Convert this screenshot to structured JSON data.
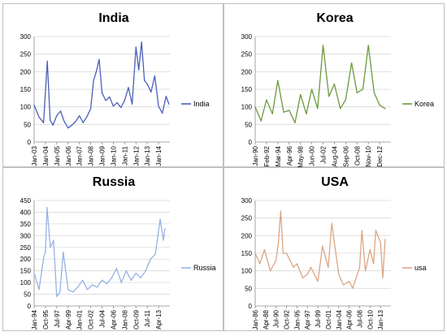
{
  "chart_data": [
    {
      "type": "line",
      "title": "India",
      "xlabel": "",
      "ylabel": "",
      "ylim": [
        0,
        300
      ],
      "y_ticks": [
        "0",
        "50",
        "100",
        "150",
        "200",
        "250",
        "300"
      ],
      "x_ticks": [
        "Jan-03",
        "Jan-04",
        "Jan-05",
        "Jan-06",
        "Jan-07",
        "Jan-08",
        "Jan-09",
        "Jan-10",
        "Jan-11",
        "Jan-12",
        "Jan-13",
        "Jan-14"
      ],
      "grid": true,
      "legend_position": "right",
      "color": "#4a5fb8",
      "series": [
        {
          "name": "India",
          "points": [
            [
              "Jan-03",
              105
            ],
            [
              "Jun-03",
              72
            ],
            [
              "Nov-03",
              55
            ],
            [
              "Mar-04",
              230
            ],
            [
              "Jun-04",
              62
            ],
            [
              "Sep-04",
              48
            ],
            [
              "Jan-05",
              75
            ],
            [
              "May-05",
              88
            ],
            [
              "Sep-05",
              58
            ],
            [
              "Jan-06",
              40
            ],
            [
              "May-06",
              48
            ],
            [
              "Sep-06",
              58
            ],
            [
              "Jan-07",
              75
            ],
            [
              "May-07",
              55
            ],
            [
              "Sep-07",
              72
            ],
            [
              "Jan-08",
              95
            ],
            [
              "Apr-08",
              175
            ],
            [
              "Jul-08",
              200
            ],
            [
              "Oct-08",
              235
            ],
            [
              "Jan-09",
              140
            ],
            [
              "May-09",
              118
            ],
            [
              "Sep-09",
              128
            ],
            [
              "Jan-10",
              102
            ],
            [
              "May-10",
              112
            ],
            [
              "Sep-10",
              98
            ],
            [
              "Jan-11",
              118
            ],
            [
              "May-11",
              155
            ],
            [
              "Sep-11",
              108
            ],
            [
              "Jan-12",
              270
            ],
            [
              "Apr-12",
              205
            ],
            [
              "Jul-12",
              284
            ],
            [
              "Oct-12",
              175
            ],
            [
              "Jan-13",
              165
            ],
            [
              "May-13",
              142
            ],
            [
              "Sep-13",
              188
            ],
            [
              "Jan-14",
              102
            ],
            [
              "May-14",
              82
            ],
            [
              "Sep-14",
              130
            ],
            [
              "Dec-14",
              108
            ]
          ]
        }
      ]
    },
    {
      "type": "line",
      "title": "Korea",
      "xlabel": "",
      "ylabel": "",
      "ylim": [
        0,
        300
      ],
      "y_ticks": [
        "0",
        "50",
        "100",
        "150",
        "200",
        "250",
        "300"
      ],
      "x_ticks": [
        "Jan-90",
        "Feb-92",
        "Mar-94",
        "Apr-96",
        "May-98",
        "Jun-00",
        "Jul-02",
        "Aug-04",
        "Sep-06",
        "Oct-08",
        "Nov-10",
        "Dec-12"
      ],
      "grid": true,
      "legend_position": "right",
      "color": "#6a9a3c",
      "series": [
        {
          "name": "Korea",
          "points": [
            [
              "Jan-90",
              100
            ],
            [
              "Feb-91",
              60
            ],
            [
              "Feb-92",
              120
            ],
            [
              "Mar-93",
              80
            ],
            [
              "Mar-94",
              175
            ],
            [
              "Apr-95",
              85
            ],
            [
              "Apr-96",
              90
            ],
            [
              "May-97",
              55
            ],
            [
              "May-98",
              135
            ],
            [
              "Jun-99",
              80
            ],
            [
              "Jun-00",
              150
            ],
            [
              "Jul-01",
              95
            ],
            [
              "Jul-02",
              275
            ],
            [
              "Aug-03",
              130
            ],
            [
              "Aug-04",
              165
            ],
            [
              "Sep-05",
              95
            ],
            [
              "Sep-06",
              120
            ],
            [
              "Oct-07",
              225
            ],
            [
              "Oct-08",
              140
            ],
            [
              "Nov-09",
              150
            ],
            [
              "Nov-10",
              275
            ],
            [
              "Dec-11",
              140
            ],
            [
              "Dec-12",
              105
            ],
            [
              "Dec-13",
              95
            ]
          ]
        }
      ]
    },
    {
      "type": "line",
      "title": "Russia",
      "xlabel": "",
      "ylabel": "",
      "ylim": [
        0,
        450
      ],
      "y_ticks": [
        "0",
        "50",
        "100",
        "150",
        "200",
        "250",
        "300",
        "350",
        "400",
        "450"
      ],
      "x_ticks": [
        "Jan-94",
        "Oct-95",
        "Jul-97",
        "Apr-99",
        "Jan-01",
        "Oct-02",
        "Jul-04",
        "Apr-06",
        "Jan-08",
        "Oct-09",
        "Jul-11",
        "Apr-13"
      ],
      "grid": true,
      "legend_position": "right",
      "color": "#95b3e3",
      "series": [
        {
          "name": "Russia",
          "points": [
            [
              "Jan-94",
              140
            ],
            [
              "Oct-94",
              70
            ],
            [
              "Jul-95",
              210
            ],
            [
              "Oct-95",
              230
            ],
            [
              "Jan-96",
              420
            ],
            [
              "Jul-96",
              250
            ],
            [
              "Jan-97",
              280
            ],
            [
              "Jul-97",
              40
            ],
            [
              "Jan-98",
              60
            ],
            [
              "Jul-98",
              230
            ],
            [
              "Apr-99",
              70
            ],
            [
              "Jan-00",
              60
            ],
            [
              "Oct-00",
              80
            ],
            [
              "Jul-01",
              110
            ],
            [
              "Apr-02",
              70
            ],
            [
              "Jan-03",
              90
            ],
            [
              "Oct-03",
              80
            ],
            [
              "Jul-04",
              110
            ],
            [
              "Apr-05",
              95
            ],
            [
              "Jan-06",
              120
            ],
            [
              "Oct-06",
              160
            ],
            [
              "Jul-07",
              100
            ],
            [
              "Apr-08",
              150
            ],
            [
              "Jan-09",
              110
            ],
            [
              "Oct-09",
              140
            ],
            [
              "Jul-10",
              120
            ],
            [
              "Apr-11",
              150
            ],
            [
              "Jan-12",
              200
            ],
            [
              "Oct-12",
              220
            ],
            [
              "Jul-13",
              370
            ],
            [
              "Jan-14",
              280
            ],
            [
              "Apr-14",
              330
            ]
          ]
        }
      ]
    },
    {
      "type": "line",
      "title": "USA",
      "xlabel": "",
      "ylabel": "",
      "ylim": [
        0,
        300
      ],
      "y_ticks": [
        "0",
        "50",
        "100",
        "150",
        "200",
        "250",
        "300"
      ],
      "x_ticks": [
        "Jan-86",
        "Apr-88",
        "Jul-90",
        "Oct-92",
        "Jan-95",
        "Apr-97",
        "Jul-99",
        "Oct-01",
        "Jan-04",
        "Apr-06",
        "Jul-08",
        "Oct-10",
        "Jan-13"
      ],
      "grid": true,
      "legend_position": "right",
      "color": "#dba583",
      "series": [
        {
          "name": "usa",
          "points": [
            [
              "Jan-86",
              150
            ],
            [
              "Jan-87",
              120
            ],
            [
              "Jan-88",
              160
            ],
            [
              "Apr-89",
              100
            ],
            [
              "Jul-90",
              130
            ],
            [
              "Jan-91",
              180
            ],
            [
              "Jul-91",
              270
            ],
            [
              "Jan-92",
              150
            ],
            [
              "Oct-92",
              150
            ],
            [
              "Apr-94",
              110
            ],
            [
              "Jan-95",
              120
            ],
            [
              "Apr-96",
              80
            ],
            [
              "Apr-97",
              90
            ],
            [
              "Jan-98",
              110
            ],
            [
              "Jul-99",
              70
            ],
            [
              "Jul-00",
              170
            ],
            [
              "Oct-01",
              110
            ],
            [
              "Jul-02",
              235
            ],
            [
              "Jan-04",
              90
            ],
            [
              "Jan-05",
              60
            ],
            [
              "Apr-06",
              70
            ],
            [
              "Jan-07",
              50
            ],
            [
              "Jul-08",
              110
            ],
            [
              "Jan-09",
              215
            ],
            [
              "Oct-09",
              100
            ],
            [
              "Oct-10",
              160
            ],
            [
              "Jul-11",
              120
            ],
            [
              "Jan-12",
              215
            ],
            [
              "Jan-13",
              180
            ],
            [
              "Jul-13",
              80
            ],
            [
              "Jan-14",
              190
            ]
          ]
        }
      ]
    }
  ]
}
